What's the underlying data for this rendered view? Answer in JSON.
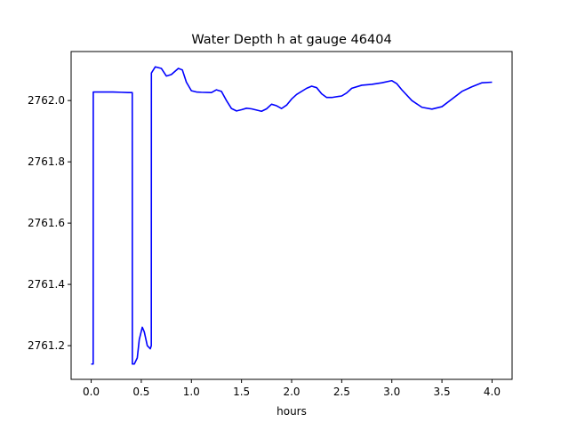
{
  "chart_data": {
    "type": "line",
    "title": "Water Depth h at gauge 46404",
    "xlabel": "hours",
    "ylabel": "",
    "xlim": [
      -0.2,
      4.2
    ],
    "ylim": [
      2761.09,
      2762.16
    ],
    "xticks": [
      {
        "value": 0.0,
        "label": "0.0"
      },
      {
        "value": 0.5,
        "label": "0.5"
      },
      {
        "value": 1.0,
        "label": "1.0"
      },
      {
        "value": 1.5,
        "label": "1.5"
      },
      {
        "value": 2.0,
        "label": "2.0"
      },
      {
        "value": 2.5,
        "label": "2.5"
      },
      {
        "value": 3.0,
        "label": "3.0"
      },
      {
        "value": 3.5,
        "label": "3.5"
      },
      {
        "value": 4.0,
        "label": "4.0"
      }
    ],
    "yticks": [
      {
        "value": 2761.2,
        "label": "2761.2"
      },
      {
        "value": 2761.4,
        "label": "2761.4"
      },
      {
        "value": 2761.6,
        "label": "2761.6"
      },
      {
        "value": 2761.8,
        "label": "2761.8"
      },
      {
        "value": 2762.0,
        "label": "2762.0"
      }
    ],
    "grid": false,
    "series": [
      {
        "color": "#0000ff",
        "points": [
          [
            0.0,
            2761.14
          ],
          [
            0.02,
            2761.14
          ],
          [
            0.021,
            2762.028
          ],
          [
            0.1,
            2762.028
          ],
          [
            0.2,
            2762.028
          ],
          [
            0.3,
            2762.027
          ],
          [
            0.37,
            2762.026
          ],
          [
            0.41,
            2762.026
          ],
          [
            0.411,
            2761.14
          ],
          [
            0.43,
            2761.14
          ],
          [
            0.46,
            2761.16
          ],
          [
            0.48,
            2761.22
          ],
          [
            0.51,
            2761.26
          ],
          [
            0.53,
            2761.245
          ],
          [
            0.56,
            2761.2
          ],
          [
            0.59,
            2761.19
          ],
          [
            0.6,
            2761.2
          ],
          [
            0.601,
            2762.09
          ],
          [
            0.64,
            2762.11
          ],
          [
            0.7,
            2762.105
          ],
          [
            0.75,
            2762.08
          ],
          [
            0.8,
            2762.085
          ],
          [
            0.87,
            2762.105
          ],
          [
            0.91,
            2762.1
          ],
          [
            0.95,
            2762.06
          ],
          [
            1.0,
            2762.032
          ],
          [
            1.05,
            2762.028
          ],
          [
            1.1,
            2762.027
          ],
          [
            1.2,
            2762.026
          ],
          [
            1.25,
            2762.035
          ],
          [
            1.3,
            2762.03
          ],
          [
            1.35,
            2762.0
          ],
          [
            1.4,
            2761.974
          ],
          [
            1.45,
            2761.966
          ],
          [
            1.5,
            2761.97
          ],
          [
            1.55,
            2761.975
          ],
          [
            1.6,
            2761.973
          ],
          [
            1.7,
            2761.965
          ],
          [
            1.75,
            2761.973
          ],
          [
            1.8,
            2761.988
          ],
          [
            1.85,
            2761.983
          ],
          [
            1.9,
            2761.974
          ],
          [
            1.95,
            2761.985
          ],
          [
            2.0,
            2762.005
          ],
          [
            2.05,
            2762.02
          ],
          [
            2.15,
            2762.04
          ],
          [
            2.2,
            2762.047
          ],
          [
            2.25,
            2762.042
          ],
          [
            2.3,
            2762.022
          ],
          [
            2.35,
            2762.01
          ],
          [
            2.4,
            2762.01
          ],
          [
            2.5,
            2762.015
          ],
          [
            2.55,
            2762.025
          ],
          [
            2.6,
            2762.04
          ],
          [
            2.7,
            2762.05
          ],
          [
            2.8,
            2762.053
          ],
          [
            2.9,
            2762.058
          ],
          [
            3.0,
            2762.065
          ],
          [
            3.05,
            2762.055
          ],
          [
            3.1,
            2762.035
          ],
          [
            3.2,
            2762.0
          ],
          [
            3.3,
            2761.978
          ],
          [
            3.4,
            2761.972
          ],
          [
            3.5,
            2761.98
          ],
          [
            3.6,
            2762.005
          ],
          [
            3.7,
            2762.03
          ],
          [
            3.8,
            2762.045
          ],
          [
            3.9,
            2762.058
          ],
          [
            4.0,
            2762.06
          ]
        ]
      }
    ]
  }
}
